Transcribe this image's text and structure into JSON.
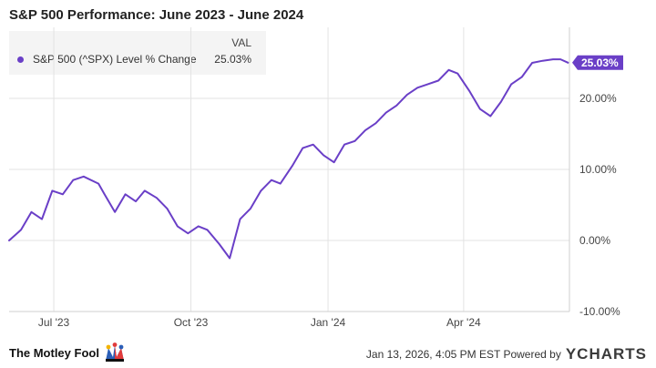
{
  "chart_data": {
    "type": "line",
    "title": "S&P 500 Performance: June 2023 - June 2024",
    "legend": {
      "header": "VAL",
      "position": "top-left"
    },
    "series": [
      {
        "name": "S&P 500 (^SPX) Level % Change",
        "color": "#6a3fc7",
        "last_value_label": "25.03%",
        "x": [
          "2023-06-01",
          "2023-06-09",
          "2023-06-16",
          "2023-06-23",
          "2023-06-30",
          "2023-07-07",
          "2023-07-14",
          "2023-07-21",
          "2023-07-31",
          "2023-08-04",
          "2023-08-11",
          "2023-08-18",
          "2023-08-25",
          "2023-08-31",
          "2023-09-08",
          "2023-09-15",
          "2023-09-22",
          "2023-09-29",
          "2023-10-06",
          "2023-10-12",
          "2023-10-20",
          "2023-10-27",
          "2023-11-03",
          "2023-11-10",
          "2023-11-17",
          "2023-11-24",
          "2023-11-30",
          "2023-12-08",
          "2023-12-15",
          "2023-12-22",
          "2023-12-29",
          "2024-01-05",
          "2024-01-12",
          "2024-01-19",
          "2024-01-26",
          "2024-02-02",
          "2024-02-09",
          "2024-02-16",
          "2024-02-23",
          "2024-03-01",
          "2024-03-08",
          "2024-03-15",
          "2024-03-22",
          "2024-03-28",
          "2024-04-05",
          "2024-04-12",
          "2024-04-19",
          "2024-04-26",
          "2024-05-03",
          "2024-05-10",
          "2024-05-17",
          "2024-05-24",
          "2024-05-31",
          "2024-06-05",
          "2024-06-10"
        ],
        "y": [
          0.0,
          1.5,
          4.0,
          3.0,
          7.0,
          6.5,
          8.5,
          9.0,
          8.0,
          6.5,
          4.0,
          6.5,
          5.5,
          7.0,
          6.0,
          4.5,
          2.0,
          1.0,
          2.0,
          1.5,
          -0.5,
          -2.5,
          3.0,
          4.5,
          7.0,
          8.5,
          8.0,
          10.5,
          13.0,
          13.5,
          12.0,
          11.0,
          13.5,
          14.0,
          15.5,
          16.5,
          18.0,
          19.0,
          20.5,
          21.5,
          22.0,
          22.5,
          24.0,
          23.5,
          21.0,
          18.5,
          17.5,
          19.5,
          22.0,
          23.0,
          25.0,
          25.3,
          25.5,
          25.5,
          25.03
        ]
      }
    ],
    "x_ticks": [
      {
        "date": "2023-07-01",
        "label": "Jul '23"
      },
      {
        "date": "2023-10-01",
        "label": "Oct '23"
      },
      {
        "date": "2024-01-01",
        "label": "Jan '24"
      },
      {
        "date": "2024-04-01",
        "label": "Apr '24"
      }
    ],
    "y_ticks": [
      {
        "value": 20,
        "label": "20.00%"
      },
      {
        "value": 10,
        "label": "10.00%"
      },
      {
        "value": 0,
        "label": "0.00%"
      },
      {
        "value": -10,
        "label": "-10.00%"
      }
    ],
    "ylim": [
      -10,
      30
    ],
    "xlim": [
      "2023-06-01",
      "2024-06-11"
    ],
    "grid": true
  },
  "footer": {
    "brand": "The Motley Fool",
    "timestamp": "Jan 13, 2026, 4:05 PM EST  Powered by",
    "provider": "YCHARTS"
  }
}
